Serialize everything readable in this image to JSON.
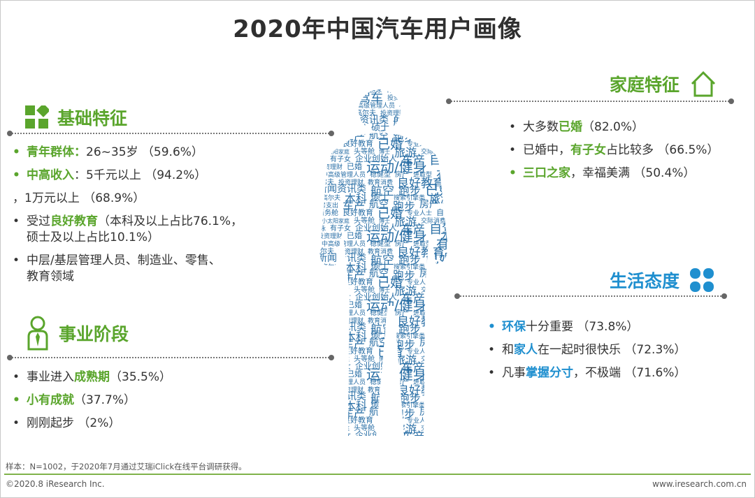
{
  "title": "2020年中国汽车用户画像",
  "sections": {
    "basic": {
      "heading": "基础特征",
      "items": [
        {
          "pre": "",
          "hl": "青年群体：",
          "post": "26~35岁 （59.6%）",
          "bullet": "•"
        },
        {
          "pre": "",
          "hl": "中高收入",
          "post": "：5千元以上 （94.2%）",
          "bullet": "•"
        },
        {
          "pre": "，1万元以上 （68.9%）",
          "hl": "",
          "post": "",
          "bullet": ""
        },
        {
          "pre": "受过",
          "hl": "良好教育",
          "post": "（本科及以上占比76.1%，",
          "bullet": "•"
        },
        {
          "pre": "硕士及以上占比10.1%）",
          "hl": "",
          "post": "",
          "bullet": ""
        },
        {
          "pre": "中层/基层管理人员、制造业、零售、",
          "hl": "",
          "post": "",
          "bullet": "•"
        },
        {
          "pre": "教育领域",
          "hl": "",
          "post": "",
          "bullet": ""
        }
      ]
    },
    "career": {
      "heading": "事业阶段",
      "items": [
        {
          "pre": "事业进入",
          "hl": "成熟期",
          "post": "（35.5%）"
        },
        {
          "pre": "",
          "hl": "小有成就",
          "post": "（37.7%）"
        },
        {
          "pre": "刚刚起步 （2%）",
          "hl": "",
          "post": ""
        }
      ]
    },
    "family": {
      "heading": "家庭特征",
      "items": [
        {
          "pre": "大多数",
          "hl": "已婚",
          "post": "（82.0%）"
        },
        {
          "pre": "已婚中，",
          "hl": "有子女",
          "post": "占比较多 （66.5%）"
        },
        {
          "pre": "",
          "hl": "三口之家",
          "post": "，幸福美满 （50.4%）"
        }
      ]
    },
    "life": {
      "heading": "生活态度",
      "items": [
        {
          "pre": "",
          "hl": "环保",
          "post": "十分重要 （73.8%）"
        },
        {
          "pre": "和",
          "hl": "家人",
          "post": "在一起时很快乐 （72.3%）"
        },
        {
          "pre": "凡事",
          "hl": "掌握分寸",
          "post": "，不极端 （71.6%）"
        }
      ]
    }
  },
  "wordcloud": [
    "旅游",
    "交际消费",
    "游泳",
    "有子女",
    "企业创始人",
    "车产",
    "自驾车",
    "投资理财",
    "已婚",
    "运动/健身",
    "本科",
    "中高级管理人员",
    "稳健型",
    "房产",
    "进取型",
    "有子女",
    "高尔夫",
    "投资理财",
    "教育消费",
    "良好教育",
    "硕士",
    "新闻资讯类",
    "航空",
    "跑步",
    "已婚",
    "高尔夫",
    "本科",
    "硕士",
    "搜索引擎类",
    "旅游",
    "住房支出",
    "车产",
    "航空",
    "跑步",
    "房产",
    "游泳",
    "商务舱",
    "良好教育",
    "已婚",
    "专业人士",
    "自驾车",
    "小太阳家庭",
    "头等舱",
    "博士"
  ],
  "footer": {
    "sample": "样本：N=1002，于2020年7月通过艾瑞iClick在线平台调研获得。",
    "copyright": "©2020.8 iResearch Inc.",
    "website": "www.iresearch.com.cn"
  },
  "colors": {
    "green": "#5aa52c",
    "blue": "#1f8fcf"
  }
}
